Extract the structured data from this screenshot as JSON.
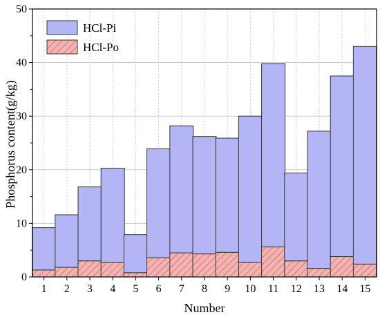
{
  "chart_data": {
    "type": "bar",
    "stacked": true,
    "xlabel": "Number",
    "ylabel": "Phosphorus content(g/kg)",
    "ylim": [
      0,
      50
    ],
    "yticks": [
      0,
      10,
      20,
      30,
      40,
      50
    ],
    "categories": [
      "1",
      "2",
      "3",
      "4",
      "5",
      "6",
      "7",
      "8",
      "9",
      "10",
      "11",
      "12",
      "13",
      "14",
      "15"
    ],
    "series": [
      {
        "name": "HCl-Pi",
        "color": "#b3b5f5",
        "pattern": "solid",
        "values": [
          7.9,
          9.8,
          13.8,
          17.6,
          7.1,
          20.3,
          23.7,
          21.9,
          21.3,
          27.3,
          34.2,
          16.4,
          25.6,
          33.7,
          40.6
        ]
      },
      {
        "name": "HCl-Po",
        "color": "#f4b3b3",
        "pattern": "diagonal-hatch",
        "values": [
          1.3,
          1.8,
          3.0,
          2.7,
          0.8,
          3.6,
          4.5,
          4.3,
          4.6,
          2.7,
          5.6,
          3.0,
          1.6,
          3.8,
          2.4
        ]
      }
    ],
    "legend_position": "top-left",
    "grid": "horizontal and vertical dotted"
  }
}
